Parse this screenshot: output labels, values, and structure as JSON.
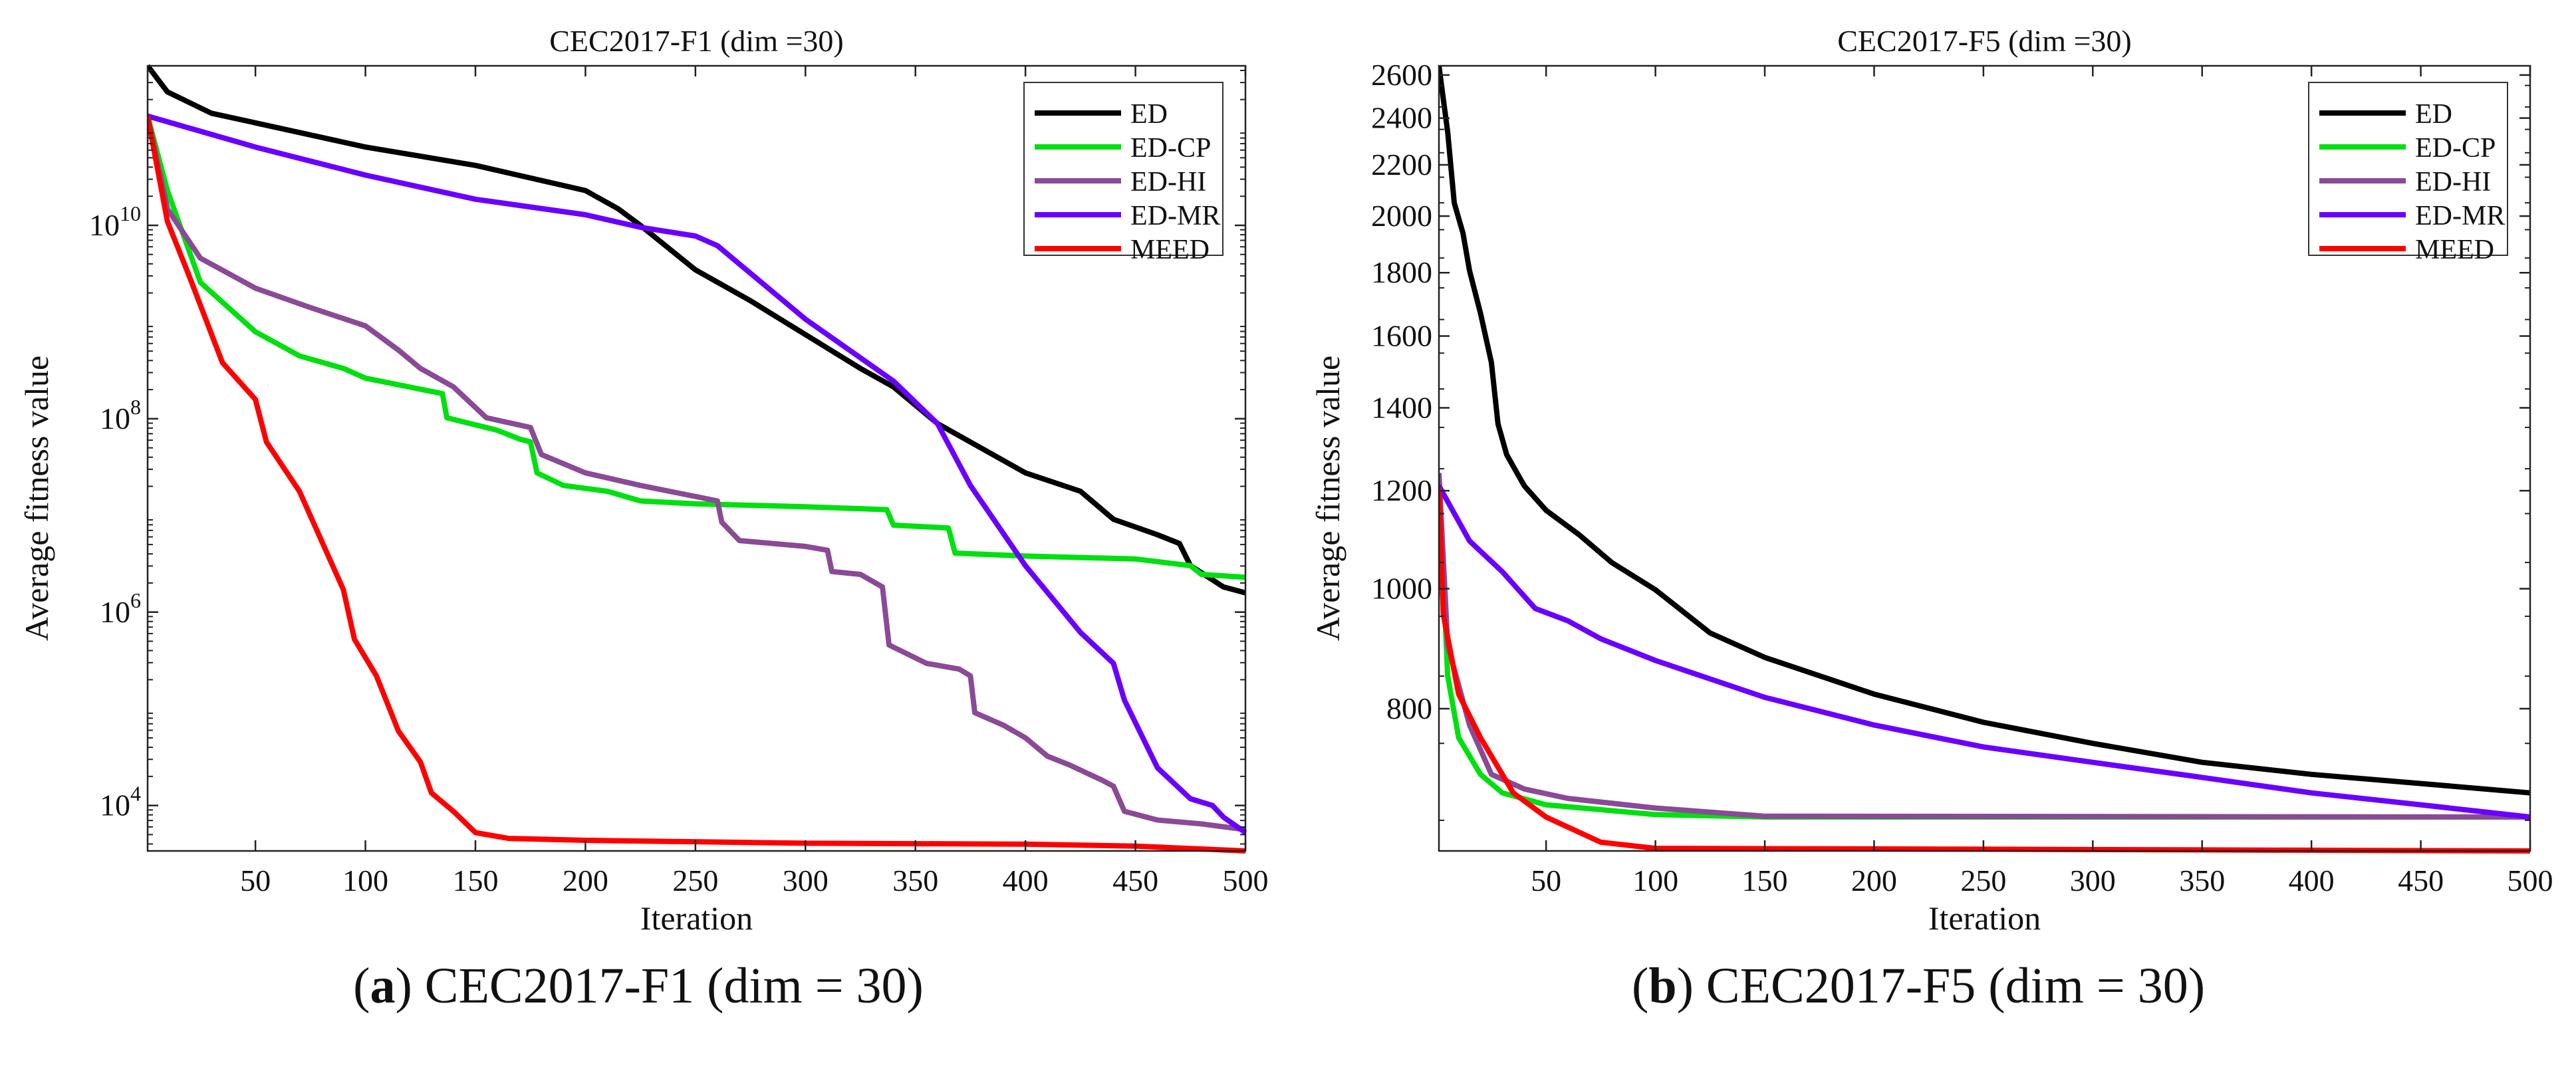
{
  "captions": [
    {
      "letter": "a",
      "text": " CEC2017-F1 (dim = 30)"
    },
    {
      "letter": "b",
      "text": " CEC2017-F5 (dim = 30)"
    }
  ],
  "legend_colors": {
    "ED": "#000000",
    "ED-CP": "#00e010",
    "ED-HI": "#8a4a96",
    "ED-MR": "#6a00ff",
    "MEED": "#ff0000"
  },
  "chart_data": [
    {
      "type": "line",
      "title": "CEC2017-F1 (dim =30)",
      "xlabel": "Iteration",
      "ylabel": "Average fitness value",
      "yscale": "log10",
      "xlim": [
        1,
        500
      ],
      "ylim_log10": [
        3.53,
        11.65
      ],
      "xticks": [
        50,
        100,
        150,
        200,
        250,
        300,
        350,
        400,
        450,
        500
      ],
      "yticks": [
        {
          "base": "10",
          "exp": "4",
          "v": 4
        },
        {
          "base": "10",
          "exp": "6",
          "v": 6
        },
        {
          "base": "10",
          "exp": "8",
          "v": 8
        },
        {
          "base": "10",
          "exp": "10",
          "v": 10
        }
      ],
      "legend_position": "top-right",
      "series": [
        {
          "name": "ED",
          "x": [
            1,
            10,
            30,
            50,
            100,
            150,
            200,
            215,
            225,
            250,
            275,
            300,
            325,
            340,
            360,
            400,
            425,
            440,
            460,
            470,
            475,
            490,
            500
          ],
          "log10_y": [
            11.65,
            11.38,
            11.16,
            11.06,
            10.81,
            10.62,
            10.36,
            10.17,
            10.0,
            9.54,
            9.22,
            8.87,
            8.52,
            8.33,
            7.95,
            7.44,
            7.25,
            6.96,
            6.8,
            6.71,
            6.48,
            6.26,
            6.2
          ]
        },
        {
          "name": "ED-CP",
          "x": [
            1,
            10,
            25,
            50,
            70,
            90,
            100,
            135,
            137,
            160,
            170,
            175,
            178,
            190,
            210,
            225,
            250,
            300,
            337,
            340,
            365,
            368,
            400,
            450,
            475,
            480,
            500
          ],
          "log10_y": [
            11.13,
            10.36,
            9.41,
            8.9,
            8.65,
            8.52,
            8.42,
            8.26,
            8.01,
            7.88,
            7.79,
            7.76,
            7.44,
            7.31,
            7.25,
            7.15,
            7.12,
            7.09,
            7.06,
            6.9,
            6.87,
            6.61,
            6.58,
            6.55,
            6.48,
            6.39,
            6.36
          ]
        },
        {
          "name": "ED-HI",
          "x": [
            1,
            10,
            25,
            50,
            75,
            100,
            115,
            125,
            140,
            155,
            175,
            180,
            200,
            225,
            260,
            262,
            270,
            300,
            310,
            312,
            325,
            335,
            338,
            355,
            370,
            375,
            377,
            390,
            400,
            410,
            420,
            435,
            440,
            445,
            460,
            480,
            500
          ],
          "log10_y": [
            11.13,
            10.17,
            9.66,
            9.35,
            9.15,
            8.96,
            8.71,
            8.52,
            8.33,
            8.01,
            7.91,
            7.63,
            7.44,
            7.31,
            7.15,
            6.93,
            6.74,
            6.68,
            6.64,
            6.42,
            6.39,
            6.26,
            5.66,
            5.47,
            5.41,
            5.34,
            4.96,
            4.83,
            4.7,
            4.51,
            4.42,
            4.26,
            4.2,
            3.94,
            3.85,
            3.81,
            3.75
          ]
        },
        {
          "name": "ED-MR",
          "x": [
            1,
            50,
            100,
            150,
            200,
            225,
            250,
            260,
            300,
            340,
            360,
            375,
            400,
            425,
            440,
            445,
            460,
            475,
            485,
            490,
            500
          ],
          "log10_y": [
            11.13,
            10.81,
            10.52,
            10.27,
            10.11,
            9.98,
            9.89,
            9.79,
            9.03,
            8.39,
            7.95,
            7.31,
            6.48,
            5.79,
            5.47,
            5.09,
            4.39,
            4.07,
            4.0,
            3.88,
            3.72
          ]
        },
        {
          "name": "MEED",
          "x": [
            1,
            10,
            20,
            35,
            50,
            55,
            70,
            80,
            90,
            95,
            105,
            115,
            125,
            130,
            140,
            150,
            165,
            200,
            300,
            400,
            450,
            500
          ],
          "log10_y": [
            11.13,
            10.04,
            9.47,
            8.58,
            8.2,
            7.76,
            7.25,
            6.74,
            6.23,
            5.72,
            5.34,
            4.77,
            4.45,
            4.13,
            3.94,
            3.72,
            3.66,
            3.64,
            3.61,
            3.6,
            3.58,
            3.53
          ]
        }
      ]
    },
    {
      "type": "line",
      "title": "CEC2017-F5 (dim =30)",
      "xlabel": "Iteration",
      "ylabel": "Average fitness value",
      "yscale": "log",
      "xlim": [
        1,
        500
      ],
      "ylim": [
        614,
        2645
      ],
      "xticks": [
        50,
        100,
        150,
        200,
        250,
        300,
        350,
        400,
        450,
        500
      ],
      "yticks": [
        {
          "base": "800",
          "v": 800
        },
        {
          "base": "1000",
          "v": 1000
        },
        {
          "base": "1200",
          "v": 1200
        },
        {
          "base": "1400",
          "v": 1400
        },
        {
          "base": "1600",
          "v": 1600
        },
        {
          "base": "1800",
          "v": 1800
        },
        {
          "base": "2000",
          "v": 2000
        },
        {
          "base": "2200",
          "v": 2200
        },
        {
          "base": "2400",
          "v": 2400
        },
        {
          "base": "2600",
          "v": 2600
        }
      ],
      "legend_position": "top-right",
      "series": [
        {
          "name": "ED",
          "x": [
            1,
            5,
            8,
            12,
            15,
            20,
            25,
            28,
            32,
            40,
            50,
            65,
            80,
            100,
            125,
            150,
            200,
            250,
            300,
            350,
            400,
            450,
            500
          ],
          "y": [
            2645,
            2337,
            2050,
            1937,
            1807,
            1669,
            1523,
            1359,
            1283,
            1211,
            1157,
            1106,
            1050,
            998,
            921,
            880,
            822,
            780,
            750,
            724,
            708,
            696,
            684
          ]
        },
        {
          "name": "ED-CP",
          "x": [
            1,
            5,
            10,
            20,
            30,
            50,
            100,
            150,
            500
          ],
          "y": [
            1211,
            850,
            758,
            708,
            684,
            669,
            657,
            654,
            654
          ]
        },
        {
          "name": "ED-HI",
          "x": [
            1,
            5,
            15,
            25,
            40,
            60,
            100,
            150,
            500
          ],
          "y": [
            1240,
            900,
            776,
            708,
            689,
            677,
            665,
            655,
            654
          ]
        },
        {
          "name": "ED-MR",
          "x": [
            1,
            15,
            30,
            45,
            60,
            75,
            100,
            150,
            200,
            250,
            300,
            350,
            400,
            450,
            500
          ],
          "y": [
            1211,
            1093,
            1032,
            964,
            942,
            911,
            875,
            817,
            776,
            745,
            724,
            704,
            684,
            669,
            654
          ]
        },
        {
          "name": "MEED",
          "x": [
            1,
            3,
            10,
            20,
            35,
            50,
            75,
            100,
            250,
            500
          ],
          "y": [
            1205,
            953,
            822,
            758,
            684,
            654,
            624,
            617,
            616,
            614
          ]
        }
      ]
    }
  ]
}
